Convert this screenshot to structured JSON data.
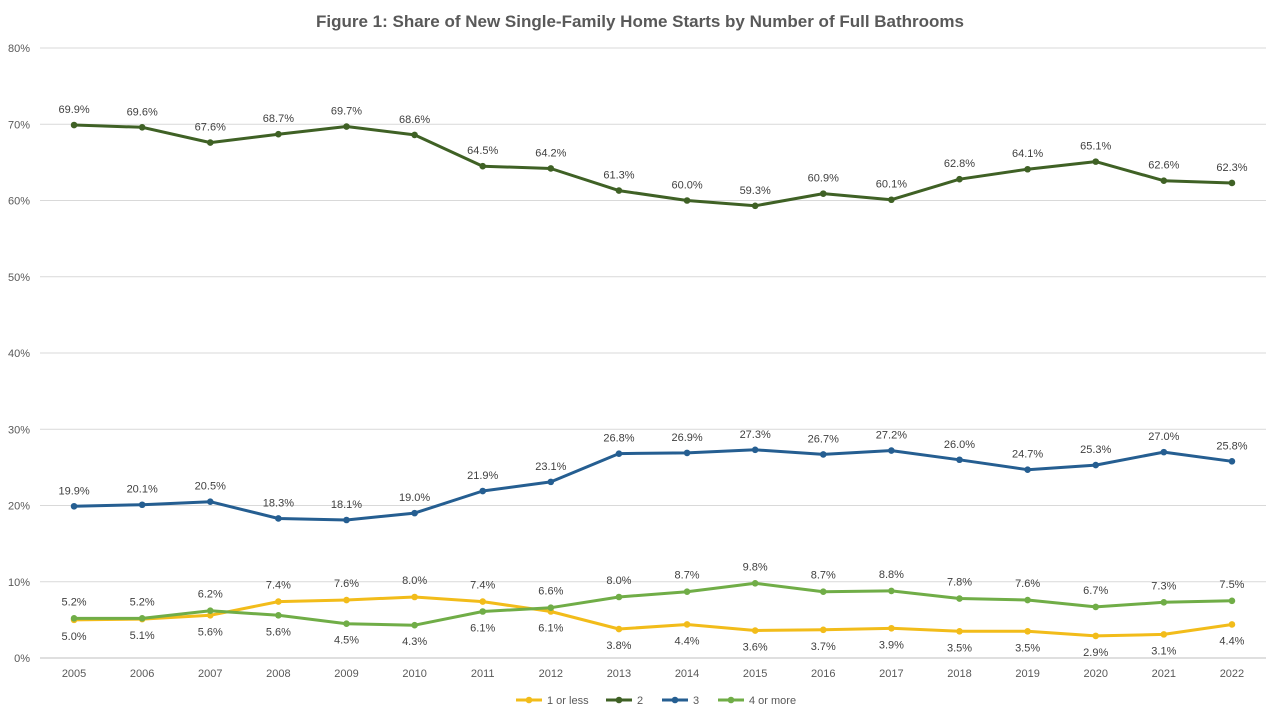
{
  "chart_data": {
    "type": "line",
    "title": "Figure 1: Share of New Single-Family Home Starts by Number of Full Bathrooms",
    "xlabel": "",
    "ylabel": "",
    "ylim": [
      0,
      80
    ],
    "yticks": [
      "0%",
      "10%",
      "20%",
      "30%",
      "40%",
      "50%",
      "60%",
      "70%",
      "80%"
    ],
    "grid": true,
    "legend_position": "bottom",
    "categories": [
      "2005",
      "2006",
      "2007",
      "2008",
      "2009",
      "2010",
      "2011",
      "2012",
      "2013",
      "2014",
      "2015",
      "2016",
      "2017",
      "2018",
      "2019",
      "2020",
      "2021",
      "2022"
    ],
    "series": [
      {
        "name": "1 or less",
        "color": "#F2BC1A",
        "values": [
          5.0,
          5.1,
          5.6,
          7.4,
          7.6,
          8.0,
          7.4,
          6.1,
          3.8,
          4.4,
          3.6,
          3.7,
          3.9,
          3.5,
          3.5,
          2.9,
          3.1,
          4.4
        ],
        "labels": [
          "5.0%",
          "5.1%",
          "5.6%",
          "7.4%",
          "7.6%",
          "8.0%",
          "7.4%",
          "6.1%",
          "3.8%",
          "4.4%",
          "3.6%",
          "3.7%",
          "3.9%",
          "3.5%",
          "3.5%",
          "2.9%",
          "3.1%",
          "4.4%"
        ]
      },
      {
        "name": "2",
        "color": "#3F6125",
        "values": [
          69.9,
          69.6,
          67.6,
          68.7,
          69.7,
          68.6,
          64.5,
          64.2,
          61.3,
          60.0,
          59.3,
          60.9,
          60.1,
          62.8,
          64.1,
          65.1,
          62.6,
          62.3
        ],
        "labels": [
          "69.9%",
          "69.6%",
          "67.6%",
          "68.7%",
          "69.7%",
          "68.6%",
          "64.5%",
          "64.2%",
          "61.3%",
          "60.0%",
          "59.3%",
          "60.9%",
          "60.1%",
          "62.8%",
          "64.1%",
          "65.1%",
          "62.6%",
          "62.3%"
        ]
      },
      {
        "name": "3",
        "color": "#255E91",
        "values": [
          19.9,
          20.1,
          20.5,
          18.3,
          18.1,
          19.0,
          21.9,
          23.1,
          26.8,
          26.9,
          27.3,
          26.7,
          27.2,
          26.0,
          24.7,
          25.3,
          27.0,
          25.8
        ],
        "labels": [
          "19.9%",
          "20.1%",
          "20.5%",
          "18.3%",
          "18.1%",
          "19.0%",
          "21.9%",
          "23.1%",
          "26.8%",
          "26.9%",
          "27.3%",
          "26.7%",
          "27.2%",
          "26.0%",
          "24.7%",
          "25.3%",
          "27.0%",
          "25.8%"
        ]
      },
      {
        "name": "4 or more",
        "color": "#70AD47",
        "values": [
          5.2,
          5.2,
          6.2,
          5.6,
          4.5,
          4.3,
          6.1,
          6.6,
          8.0,
          8.7,
          9.8,
          8.7,
          8.8,
          7.8,
          7.6,
          6.7,
          7.3,
          7.5
        ],
        "labels": [
          "5.2%",
          "5.2%",
          "6.2%",
          "5.6%",
          "4.5%",
          "4.3%",
          "6.1%",
          "6.6%",
          "8.0%",
          "8.7%",
          "9.8%",
          "8.7%",
          "8.8%",
          "7.8%",
          "7.6%",
          "6.7%",
          "7.3%",
          "7.5%"
        ]
      }
    ]
  }
}
